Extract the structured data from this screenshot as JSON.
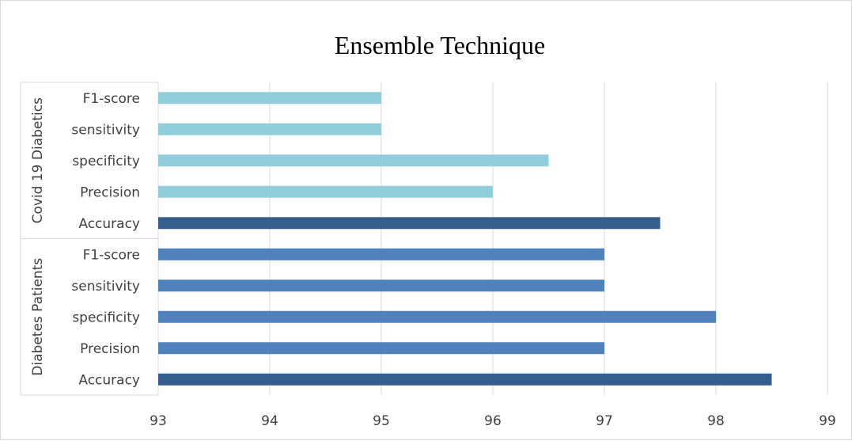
{
  "chart_data": {
    "type": "bar",
    "orientation": "horizontal",
    "title": "Ensemble Technique",
    "xlim": [
      93,
      99
    ],
    "x_ticks": [
      93,
      94,
      95,
      96,
      97,
      98,
      99
    ],
    "grid": true,
    "groups": [
      {
        "name": "Diabetes Patients",
        "categories": [
          "Accuracy",
          "Precision",
          "specificity",
          "sensitivity",
          "F1-score"
        ],
        "values": [
          98.5,
          97,
          98,
          97,
          97
        ],
        "colors": [
          "#355e8d",
          "#4f81bd",
          "#4f81bd",
          "#4f81bd",
          "#4f81bd"
        ]
      },
      {
        "name": "Covid 19 Diabetics",
        "categories": [
          "Accuracy",
          "Precision",
          "specificity",
          "sensitivity",
          "F1-score"
        ],
        "values": [
          97.5,
          96,
          96.5,
          95,
          95
        ],
        "colors": [
          "#355e8d",
          "#92cddc",
          "#92cddc",
          "#92cddc",
          "#92cddc"
        ]
      }
    ]
  }
}
